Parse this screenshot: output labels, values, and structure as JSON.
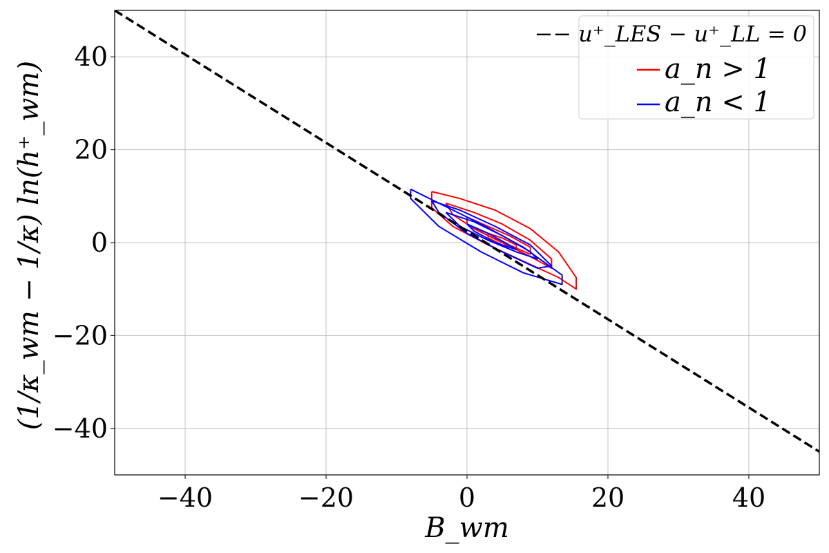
{
  "chart_data": {
    "type": "line",
    "title": "",
    "xlabel": "B_wm",
    "ylabel": "(1/κ_wm − 1/κ) ln(h⁺_wm)",
    "xlim": [
      -50,
      50
    ],
    "ylim": [
      -50,
      50
    ],
    "xticks": [
      -40,
      -20,
      0,
      20,
      40
    ],
    "yticks": [
      -40,
      -20,
      0,
      20,
      40
    ],
    "xtick_labels": [
      "−40",
      "−20",
      "0",
      "20",
      "40"
    ],
    "ytick_labels": [
      "−40",
      "−20",
      "0",
      "20",
      "40"
    ],
    "grid": true,
    "legend_position": "top-right",
    "series": [
      {
        "name": "−− u⁺_LES − u⁺_LL = 0",
        "style": "dashed",
        "color": "#000000",
        "x": [
          -50,
          50
        ],
        "y": [
          50,
          -45
        ]
      },
      {
        "name": "a_n > 1",
        "style": "contour",
        "color": "#ff0000",
        "contours": [
          {
            "x": [
              -5,
              -1,
              4,
              9,
              13,
              15.5,
              15.5,
              13,
              8,
              3,
              -2,
              -5,
              -5
            ],
            "y": [
              11,
              9.5,
              7,
              3,
              -2,
              -7.5,
              -10,
              -7.5,
              -4,
              -0.5,
              3.5,
              7.5,
              11
            ]
          },
          {
            "x": [
              -3,
              1,
              5,
              9,
              12,
              12,
              9,
              5,
              1,
              -2,
              -3
            ],
            "y": [
              8.5,
              6.5,
              4,
              0.5,
              -3.5,
              -5.5,
              -3,
              0,
              3,
              6,
              8.5
            ]
          },
          {
            "x": [
              0,
              3,
              6,
              9,
              9,
              6,
              3,
              0,
              0
            ],
            "y": [
              5.5,
              3.5,
              1.5,
              -1,
              -2.5,
              -0.5,
              1.5,
              4,
              5.5
            ]
          },
          {
            "x": [
              3,
              5,
              7,
              7,
              5,
              3,
              3
            ],
            "y": [
              2,
              1,
              -0.5,
              -1.2,
              -0.5,
              1,
              2
            ]
          }
        ]
      },
      {
        "name": "a_n < 1",
        "style": "contour",
        "color": "#0000ff",
        "contours": [
          {
            "x": [
              -8,
              -4,
              2,
              8,
              13.5,
              13.5,
              8,
              2,
              -4,
              -8,
              -8
            ],
            "y": [
              11.5,
              8.5,
              4,
              -1,
              -7,
              -9,
              -6.5,
              -2,
              3.5,
              9.5,
              11.5
            ]
          },
          {
            "x": [
              -5,
              -1,
              4,
              9,
              12,
              10,
              5,
              0,
              -4,
              -5
            ],
            "y": [
              9,
              7,
              3.5,
              -0.5,
              -5,
              -5.5,
              -2,
              2,
              6.5,
              9
            ]
          },
          {
            "x": [
              -3,
              1,
              5,
              9,
              10,
              7,
              3,
              -1,
              -3
            ],
            "y": [
              6.5,
              4.5,
              1.5,
              -2,
              -3.5,
              -2,
              0.5,
              3.5,
              6.5
            ]
          },
          {
            "x": [
              0,
              3,
              6,
              7,
              4,
              1,
              0
            ],
            "y": [
              4,
              2,
              -0.5,
              -1.5,
              0,
              2.5,
              4
            ]
          }
        ]
      }
    ]
  }
}
